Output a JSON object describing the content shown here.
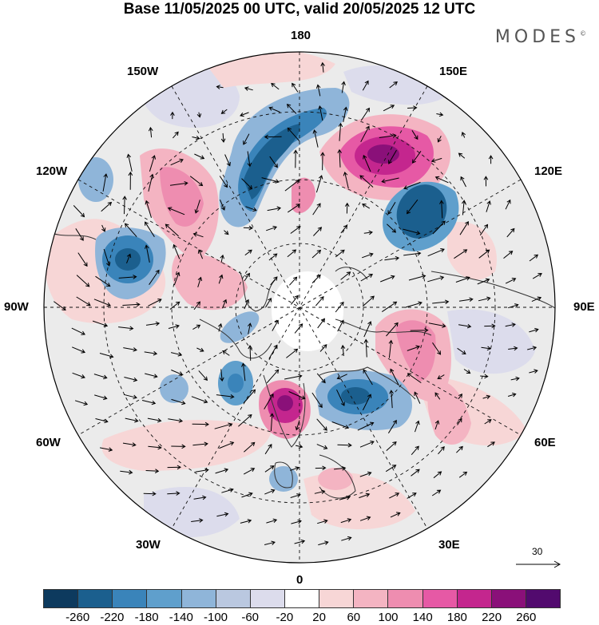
{
  "title": "Base 11/05/2025 00 UTC, valid 20/05/2025 12 UTC",
  "brand": "MODES",
  "brand_mark": "©",
  "longitude_labels": {
    "top": "180",
    "bottom": "0",
    "left": "90W",
    "right": "90E",
    "upper_left_1": "150W",
    "upper_left_2": "120W",
    "lower_left_1": "60W",
    "lower_left_2": "30W",
    "upper_right_1": "150E",
    "upper_right_2": "120E",
    "lower_right_1": "60E",
    "lower_right_2": "30E"
  },
  "vector_reference": "30",
  "colorbar": {
    "ticks": [
      "-260",
      "-220",
      "-180",
      "-140",
      "-100",
      "-60",
      "-20",
      "20",
      "60",
      "100",
      "140",
      "180",
      "220",
      "260"
    ],
    "colors": [
      "#0d3a5e",
      "#1b5f8e",
      "#3a84ba",
      "#5f9fcc",
      "#8fb5d9",
      "#bac8e0",
      "#dcdcec",
      "#ffffff",
      "#f7d6d6",
      "#f4b4c2",
      "#ee8db0",
      "#e659a5",
      "#c4268e",
      "#8a1079",
      "#520a6e"
    ]
  },
  "map": {
    "projection": "north polar stereographic",
    "colors": {
      "background": "#ebebeb",
      "coast": "#333333",
      "grid": "#111111",
      "arrow": "#000000"
    },
    "anomalies": [
      {
        "id": "pacific-high",
        "level": 200
      },
      {
        "id": "pacific-high-core",
        "level": 260
      },
      {
        "id": "siberia-low",
        "level": -200
      },
      {
        "id": "gulf-alaska-low",
        "level": -180
      },
      {
        "id": "canada-low",
        "level": -180
      },
      {
        "id": "arctic-canada-high",
        "level": 160
      },
      {
        "id": "greenland-sea-high",
        "level": 260
      },
      {
        "id": "scandinavia-low",
        "level": -200
      },
      {
        "id": "siberia-ridge",
        "level": 140
      },
      {
        "id": "labrador-low",
        "level": -160
      }
    ]
  }
}
